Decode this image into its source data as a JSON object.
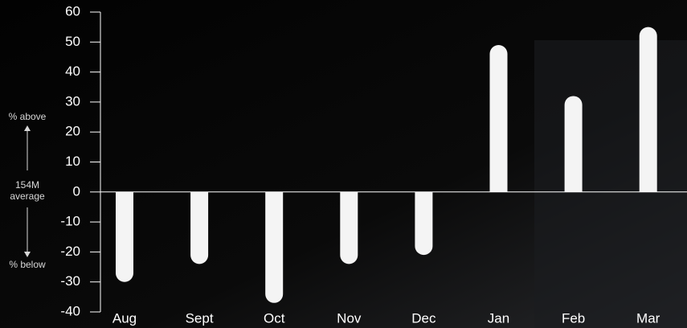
{
  "chart_data": {
    "type": "bar",
    "categories": [
      "Aug",
      "Sept",
      "Oct",
      "Nov",
      "Dec",
      "Jan",
      "Feb",
      "Mar"
    ],
    "values": [
      -30,
      -24,
      -37,
      -24,
      -21,
      49,
      32,
      55
    ],
    "color": "#f4f4f4",
    "ylim": [
      -40,
      60
    ],
    "yticks": [
      -40,
      -30,
      -20,
      -10,
      0,
      10,
      20,
      30,
      40,
      50,
      60
    ],
    "annotations": {
      "above": "% above",
      "average": [
        "154M",
        "average"
      ],
      "below": "% below"
    }
  }
}
